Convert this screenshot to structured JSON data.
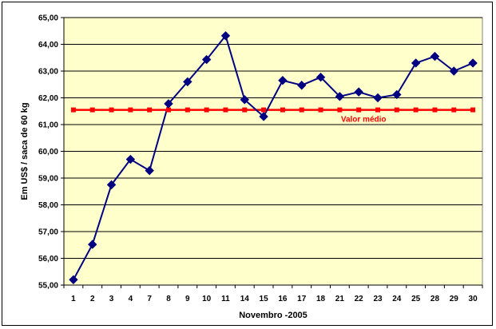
{
  "chart_data": {
    "type": "line",
    "title": "",
    "xlabel": "Novembro -2005",
    "ylabel": "Em US$ / saca de 60 kg",
    "categories": [
      "1",
      "2",
      "3",
      "4",
      "7",
      "8",
      "9",
      "10",
      "11",
      "14",
      "15",
      "16",
      "17",
      "18",
      "21",
      "22",
      "23",
      "24",
      "25",
      "28",
      "29",
      "30"
    ],
    "ylim": [
      55,
      65
    ],
    "ytick_labels": [
      "55,00",
      "56,00",
      "57,00",
      "58,00",
      "59,00",
      "60,00",
      "61,00",
      "62,00",
      "63,00",
      "64,00",
      "65,00"
    ],
    "grid": true,
    "series": [
      {
        "values": [
          55.2,
          56.52,
          58.75,
          59.7,
          59.28,
          61.78,
          62.6,
          63.43,
          64.32,
          61.93,
          61.3,
          62.65,
          62.47,
          62.77,
          62.05,
          62.22,
          62.0,
          62.12,
          63.3,
          63.55,
          63.0,
          63.3
        ],
        "color": "#000080",
        "marker": "diamond"
      },
      {
        "name": "Valor médio",
        "values": [
          61.55,
          61.55,
          61.55,
          61.55,
          61.55,
          61.55,
          61.55,
          61.55,
          61.55,
          61.55,
          61.55,
          61.55,
          61.55,
          61.55,
          61.55,
          61.55,
          61.55,
          61.55,
          61.55,
          61.55,
          61.55,
          61.55
        ],
        "color": "#ff0000",
        "marker": "square"
      }
    ],
    "annotation": "Valor médio",
    "plot_background": "#ffffcc"
  }
}
